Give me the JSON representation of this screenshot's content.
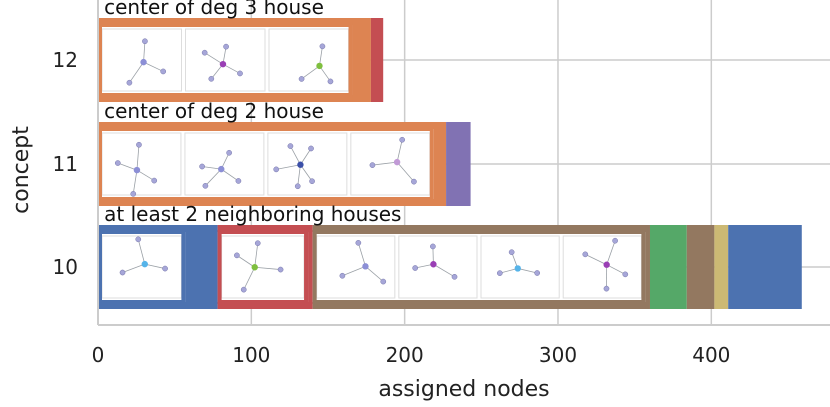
{
  "chart_data": {
    "type": "bar",
    "orientation": "horizontal",
    "stacked": true,
    "xlabel": "assigned nodes",
    "ylabel": "concept",
    "xlim": [
      0,
      470
    ],
    "xticks": [
      0,
      100,
      200,
      300,
      400
    ],
    "categories": [
      "12",
      "11",
      "10"
    ],
    "grid": true,
    "colors": {
      "blue": "#4c72b0",
      "orange": "#dd8452",
      "green": "#55a868",
      "red": "#c44e52",
      "purple": "#8172b3",
      "brown": "#937860",
      "sand": "#ccb974"
    },
    "bars": [
      {
        "category": "12",
        "annotation": "center of deg 3 house",
        "segments": [
          {
            "start": 0,
            "end": 178,
            "color": "orange"
          },
          {
            "start": 178,
            "end": 186,
            "color": "red"
          }
        ],
        "motif_groups": [
          {
            "start": 0,
            "end": 166,
            "frame_color": "orange",
            "count": 3
          }
        ]
      },
      {
        "category": "11",
        "annotation": "center of deg 2 house",
        "segments": [
          {
            "start": 0,
            "end": 227,
            "color": "orange"
          },
          {
            "start": 227,
            "end": 243,
            "color": "purple"
          }
        ],
        "motif_groups": [
          {
            "start": 0,
            "end": 219,
            "frame_color": "orange",
            "count": 4
          }
        ]
      },
      {
        "category": "10",
        "annotation": "at least 2 neighboring houses",
        "segments": [
          {
            "start": 0,
            "end": 78,
            "color": "blue"
          },
          {
            "start": 78,
            "end": 140,
            "color": "red"
          },
          {
            "start": 140,
            "end": 360,
            "color": "brown"
          },
          {
            "start": 360,
            "end": 384,
            "color": "green"
          },
          {
            "start": 384,
            "end": 402,
            "color": "brown"
          },
          {
            "start": 402,
            "end": 411,
            "color": "sand"
          },
          {
            "start": 411,
            "end": 459,
            "color": "blue"
          }
        ],
        "motif_groups": [
          {
            "start": 0,
            "end": 57,
            "frame_color": "blue",
            "count": 1
          },
          {
            "start": 78,
            "end": 137,
            "frame_color": "red",
            "count": 1
          },
          {
            "start": 140,
            "end": 357,
            "frame_color": "brown",
            "count": 4
          }
        ]
      }
    ]
  }
}
